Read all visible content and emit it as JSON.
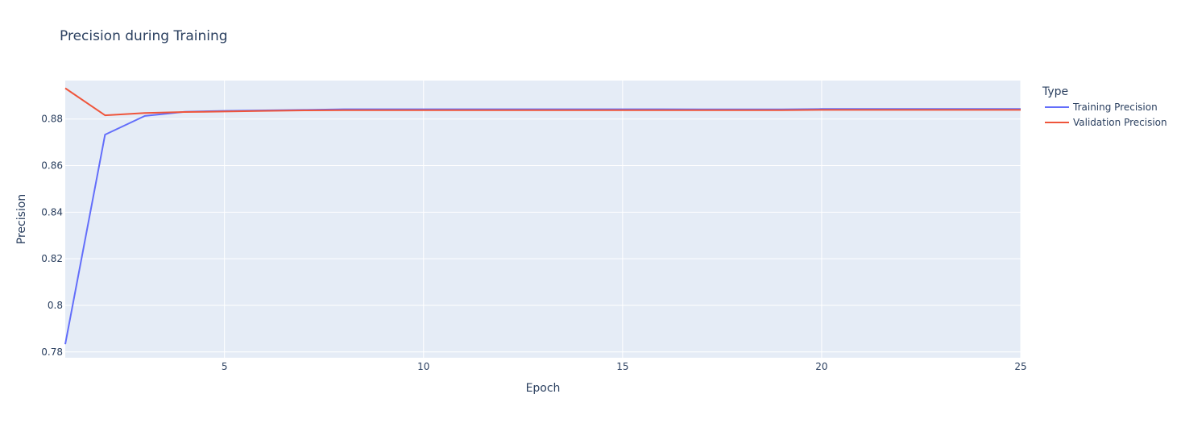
{
  "chart_data": {
    "type": "line",
    "title": "Precision during Training",
    "xlabel": "Epoch",
    "ylabel": "Precision",
    "xlim": [
      1,
      25
    ],
    "ylim": [
      0.7775,
      0.8965
    ],
    "xticks": [
      5,
      10,
      15,
      20,
      25
    ],
    "yticks": [
      0.78,
      0.8,
      0.82,
      0.84,
      0.86,
      0.88
    ],
    "ytick_labels": [
      "0.78",
      "0.8",
      "0.82",
      "0.84",
      "0.86",
      "0.88"
    ],
    "grid": true,
    "legend_placement": "top-right",
    "legend_title": "Type",
    "x": [
      1,
      2,
      3,
      4,
      5,
      6,
      7,
      8,
      9,
      10,
      11,
      12,
      13,
      14,
      15,
      16,
      17,
      18,
      19,
      20,
      21,
      22,
      23,
      24,
      25
    ],
    "series": [
      {
        "name": "Training Precision",
        "color": "#636efa",
        "values": [
          0.7833,
          0.8733,
          0.8813,
          0.8831,
          0.8835,
          0.8837,
          0.8839,
          0.8842,
          0.8842,
          0.8842,
          0.8842,
          0.8842,
          0.8842,
          0.8842,
          0.8842,
          0.8842,
          0.8841,
          0.8841,
          0.8841,
          0.8843,
          0.8843,
          0.8843,
          0.8843,
          0.8843,
          0.8843
        ]
      },
      {
        "name": "Validation Precision",
        "color": "#ef553b",
        "values": [
          0.8932,
          0.8816,
          0.8826,
          0.883,
          0.8832,
          0.8835,
          0.8837,
          0.8838,
          0.8838,
          0.8838,
          0.8838,
          0.8838,
          0.8838,
          0.8838,
          0.8838,
          0.8838,
          0.8838,
          0.8838,
          0.8838,
          0.8839,
          0.8839,
          0.8839,
          0.8839,
          0.8839,
          0.8839
        ]
      }
    ]
  }
}
